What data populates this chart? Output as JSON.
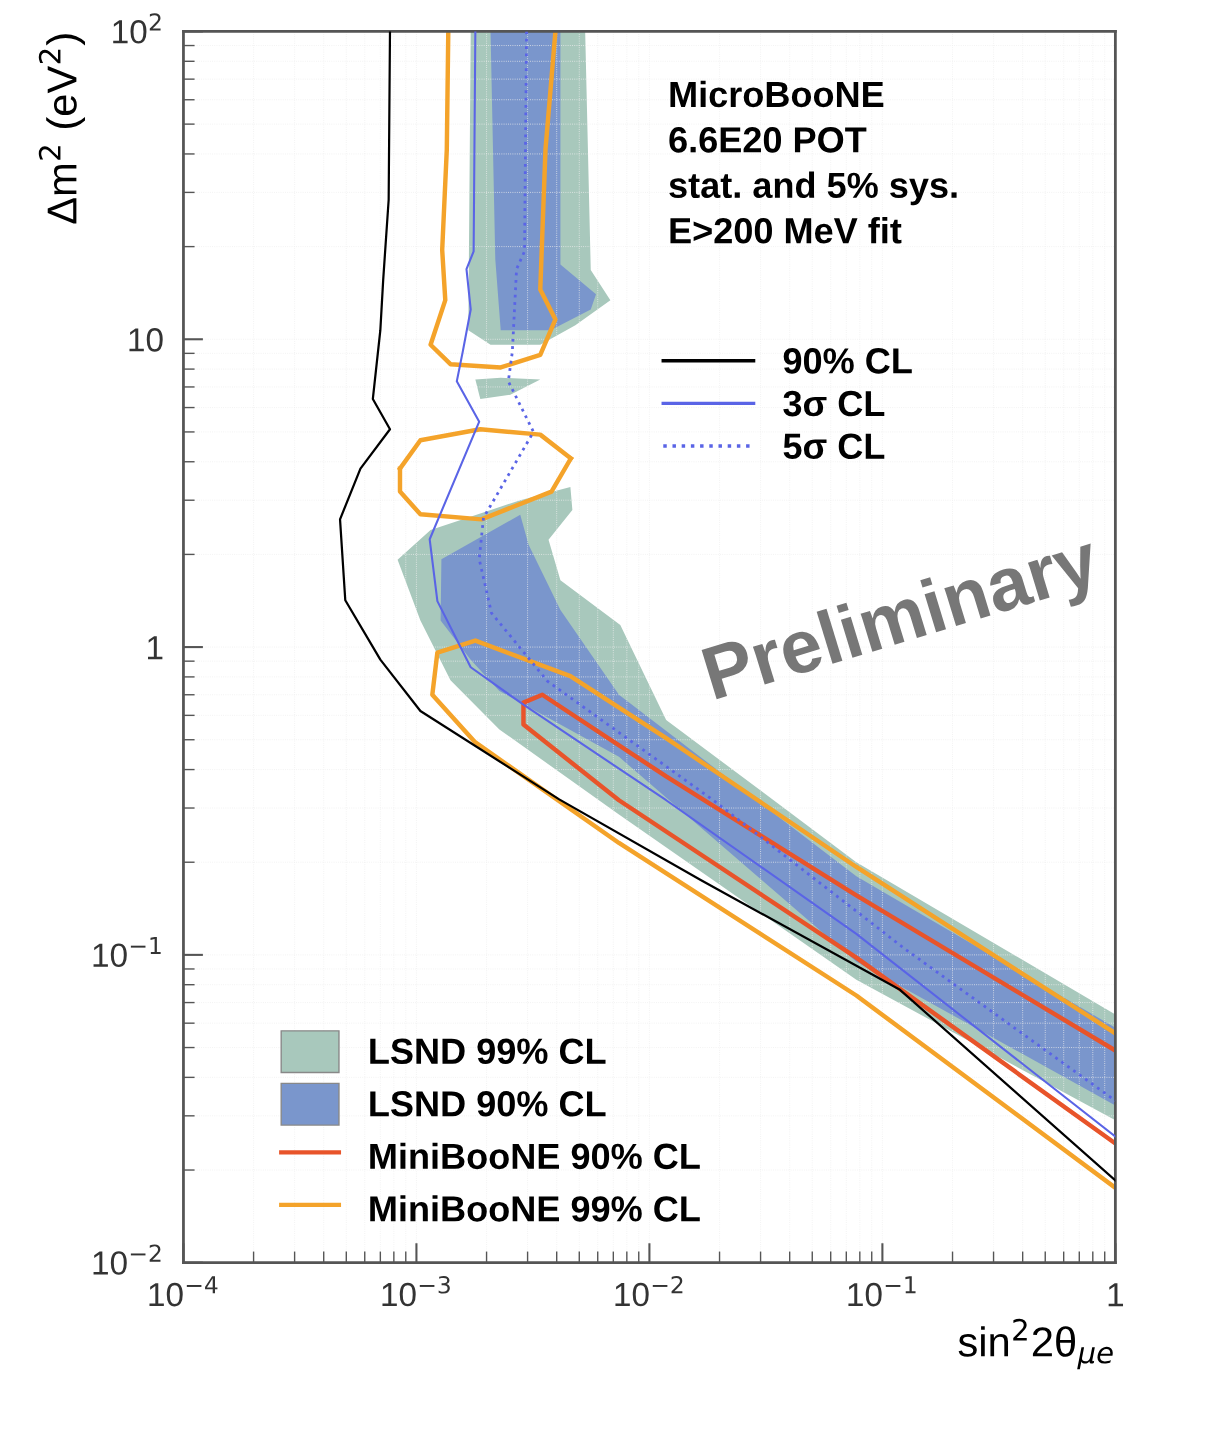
{
  "chart_data": {
    "type": "line",
    "xlabel": "sin$^{2}$2θ$_{μe}$",
    "ylabel": "Δm$^{2}$ (eV$^{2}$)",
    "log": "xy",
    "grid": true,
    "marker": "none",
    "legend": "bottom left",
    "xlim": [
      0.0001,
      1
    ],
    "ylim": [
      0.01,
      100
    ],
    "xticks": [
      {
        "value": 0.0001,
        "label": "10$^{−4}$"
      },
      {
        "value": 0.001,
        "label": "10$^{−3}$"
      },
      {
        "value": 0.01,
        "label": "10$^{−2}$"
      },
      {
        "value": 0.1,
        "label": "10$^{−1}$"
      },
      1
    ],
    "yticks": [
      {
        "value": 0.01,
        "label": "10$^{−2}$"
      },
      {
        "value": 0.1,
        "label": "10$^{−1}$"
      },
      1,
      10,
      {
        "value": 100,
        "label": "10$^{2}$"
      }
    ],
    "annotations": [
      "MicroBooNE\n6.6E20 POT\nstat. and 5% sys.\nE>200 MeV fit",
      "Preliminary"
    ],
    "series": [
      {
        "name": "LSND 99% CL",
        "type": "area",
        "color": "#a8c8bc",
        "x": [
          0.00171,
          0.00167,
          0.00208,
          0.0034,
          0.00481,
          0.0068,
          0.0056,
          0.0053,
          null,
          0.00179,
          0.0023,
          0.0034,
          0.00253,
          0.00188,
          null,
          0.00083,
          0.00115,
          0.00279,
          0.00458,
          0.00467,
          0.00369,
          0.00415,
          0.0075,
          0.0118,
          0.0773,
          1,
          1,
          0.0773,
          0.0074,
          0.00227,
          0.0014,
          0.00104
        ],
        "values": [
          100,
          10.7,
          9.6,
          9.6,
          11.1,
          13.4,
          16.8,
          100,
          null,
          7.4,
          7.5,
          7.4,
          6.6,
          6.4,
          null,
          1.92,
          2.4,
          3.0,
          3.31,
          2.79,
          2.23,
          1.65,
          1.18,
          0.58,
          0.2,
          0.064,
          0.029,
          0.083,
          0.286,
          0.54,
          0.78,
          1.22
        ]
      },
      {
        "name": "LSND 90% CL",
        "type": "area",
        "color": "#7a96cc",
        "x": [
          0.00208,
          0.00218,
          0.0023,
          0.00376,
          0.0056,
          0.0059,
          0.00415,
          0.00415,
          null,
          0.00128,
          0.00279,
          0.00303,
          0.00415,
          0.0074,
          0.0773,
          1,
          1,
          0.0773,
          0.0074,
          0.00227,
          0.00171,
          0.00127
        ],
        "values": [
          100,
          18.2,
          10.7,
          10.7,
          12.5,
          14.0,
          17.5,
          100,
          null,
          1.93,
          2.69,
          2.15,
          1.32,
          0.7,
          0.18,
          0.058,
          0.0324,
          0.095,
          0.44,
          0.72,
          0.91,
          1.22
        ]
      },
      {
        "name": "MiniBooNE 90% CL",
        "color": "#e8542a",
        "line_style": "solid",
        "x": [
          1,
          0.0773,
          0.0118,
          0.00347,
          0.00288,
          0.00288,
          0.0074,
          0.0773,
          1
        ],
        "values": [
          0.0489,
          0.156,
          0.38,
          0.7,
          0.66,
          0.56,
          0.318,
          0.098,
          0.0244
        ]
      },
      {
        "name": "MiniBooNE 99% CL",
        "color": "#f4a32a",
        "line_style": "solid",
        "x": [
          0.00137,
          0.00135,
          0.00129,
          0.00133,
          0.00115,
          0.0014,
          0.0023,
          0.0034,
          0.00395,
          0.0034,
          0.00358,
          0.00395,
          null,
          0.00085,
          0.00104,
          0.00188,
          0.0034,
          0.0046,
          null,
          0.0046,
          0.0038,
          0.0019,
          0.00104,
          0.00085,
          0.00085,
          null,
          1,
          0.0773,
          0.0118,
          0.00458,
          0.00179,
          0.00123,
          0.00117,
          0.00179,
          0.0074,
          0.0773,
          1
        ],
        "values": [
          100,
          41.3,
          19.5,
          13.4,
          9.6,
          8.3,
          8.1,
          8.9,
          11.6,
          14.5,
          41.3,
          100,
          null,
          3.8,
          4.7,
          5.1,
          4.9,
          4.1,
          null,
          4.1,
          3.2,
          2.6,
          2.7,
          3.2,
          3.8,
          null,
          0.0556,
          0.193,
          0.506,
          0.805,
          1.05,
          0.96,
          0.7,
          0.49,
          0.231,
          0.0738,
          0.0175
        ]
      },
      {
        "name": "90% CL",
        "color": "#000000",
        "line_style": "solid",
        "x": [
          0.00077,
          0.00076,
          0.00072,
          0.0007,
          0.00065,
          0.00077,
          0.000575,
          0.00047,
          0.000495,
          0.0007,
          0.00104,
          0.0041,
          0.0166,
          0.119,
          1
        ],
        "values": [
          100,
          28.4,
          15.6,
          10.7,
          6.4,
          5.1,
          3.8,
          2.6,
          1.42,
          0.91,
          0.62,
          0.32,
          0.175,
          0.077,
          0.0185
        ]
      },
      {
        "name": "3σ CL",
        "color": "#5a64e6",
        "line_style": "solid",
        "x": [
          0.00179,
          0.00176,
          0.00164,
          0.00171,
          0.00158,
          0.00149,
          0.00186,
          0.00114,
          0.00123,
          0.00171,
          0.00288,
          0.0118,
          0.0773,
          1
        ],
        "values": [
          100,
          19.3,
          16.9,
          12.5,
          9.1,
          7.3,
          5.4,
          2.24,
          1.41,
          0.86,
          0.65,
          0.318,
          0.117,
          0.0257
        ]
      },
      {
        "name": "5σ CL",
        "color": "#5a64e6",
        "line_style": "dotted",
        "x": [
          0.00297,
          0.00291,
          0.00269,
          0.00258,
          0.00248,
          0.00318,
          0.00194,
          0.00186,
          0.0021,
          0.00365,
          0.0188,
          0.124,
          1
        ],
        "values": [
          100,
          19.3,
          16.9,
          9.1,
          7.3,
          5.0,
          2.63,
          1.93,
          1.29,
          0.775,
          0.318,
          0.105,
          0.0336
        ]
      }
    ]
  }
}
